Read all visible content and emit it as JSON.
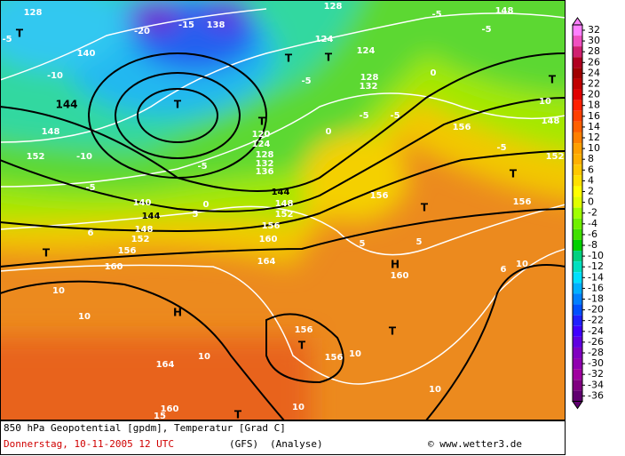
{
  "map": {
    "labels": [
      "144",
      "144",
      "144",
      "148",
      "152",
      "156",
      "160",
      "164",
      "160",
      "164",
      "160",
      "156",
      "152",
      "148",
      "140",
      "148",
      "152",
      "136",
      "132",
      "128",
      "124",
      "120",
      "T",
      "H",
      "H",
      "160",
      "T",
      "156",
      "156",
      "T",
      "T",
      "T",
      "T",
      "T",
      "T",
      "T",
      "T",
      "T",
      "10",
      "10",
      "10",
      "10",
      "10",
      "10",
      "10",
      "10",
      "15",
      "5",
      "6",
      "0",
      "-5",
      "-5",
      "-10",
      "-10",
      "-5",
      "-5",
      "-5",
      "0",
      "0",
      "5",
      "5",
      "6",
      "-5",
      "156",
      "156",
      "156",
      "148",
      "152",
      "148",
      "128",
      "124",
      "128",
      "132",
      "124",
      "-5",
      "-5",
      "-20",
      "-15",
      "138",
      "140",
      "-5",
      "T",
      "128"
    ]
  },
  "colorbar": {
    "ticks": [
      32,
      30,
      28,
      26,
      24,
      22,
      20,
      18,
      16,
      14,
      12,
      10,
      8,
      6,
      4,
      2,
      0,
      -2,
      -4,
      -6,
      -8,
      -10,
      -12,
      -14,
      -16,
      -18,
      -20,
      -22,
      -24,
      -26,
      -28,
      -30,
      -32,
      -34,
      -36
    ],
    "colors": [
      "#ff80ff",
      "#f050c0",
      "#d02070",
      "#b00020",
      "#a00000",
      "#c00000",
      "#e00000",
      "#ff2000",
      "#ff4000",
      "#ff6000",
      "#ff8000",
      "#ffa000",
      "#ffb000",
      "#ffc800",
      "#ffe000",
      "#ffff00",
      "#e0ff00",
      "#a0ff00",
      "#70f000",
      "#40e000",
      "#00d000",
      "#00d080",
      "#00e0c0",
      "#00e0ff",
      "#00b0ff",
      "#0080ff",
      "#0050ff",
      "#2020ff",
      "#4000ff",
      "#6000e0",
      "#8000c0",
      "#9000b0",
      "#a000a0",
      "#800080",
      "#600070"
    ]
  },
  "footer": {
    "title": "850 hPa Geopotential [gpdm], Temperatur [Grad C]",
    "date": "Donnerstag, 10-11-2005  12 UTC",
    "model": "(GFS)",
    "analysis": "(Analyse)",
    "credit": "© www.wetter3.de"
  }
}
